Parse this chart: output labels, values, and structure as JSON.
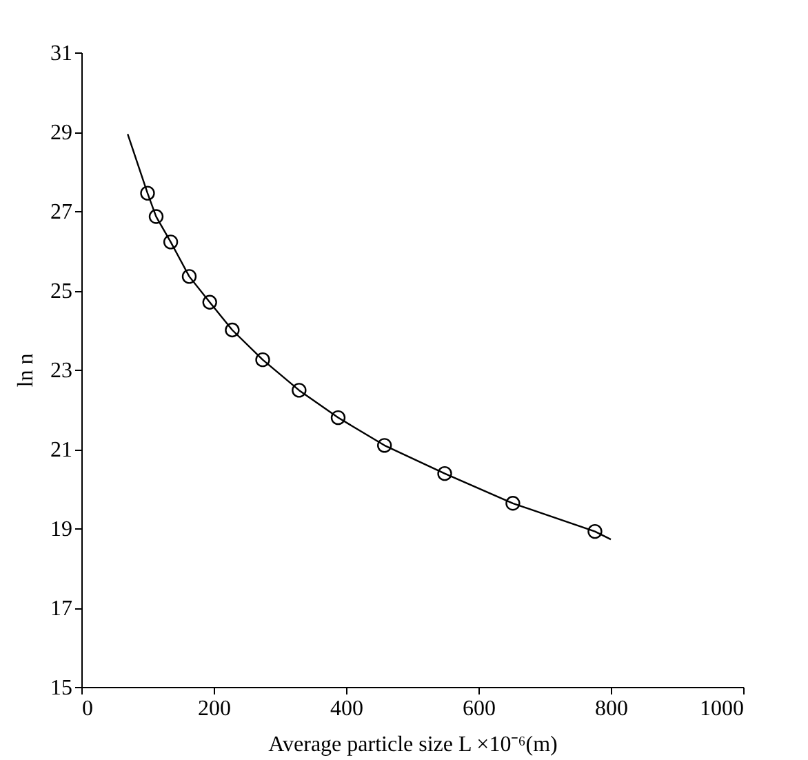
{
  "chart_data": {
    "type": "line",
    "xlabel": "Average particle size L ×10⁻⁶(m)",
    "ylabel": "ln n",
    "series": [
      {
        "color": "#000000",
        "marker": "none",
        "x": [
          70,
          100,
          113,
          135,
          163,
          194,
          228,
          274,
          329,
          388,
          458,
          549,
          652,
          776,
          800
        ],
        "values": [
          28.94,
          27.45,
          26.86,
          26.22,
          25.35,
          24.7,
          24.0,
          23.25,
          22.48,
          21.79,
          21.09,
          20.38,
          19.63,
          18.92,
          18.72
        ]
      },
      {
        "type": "scatter",
        "color": "#000000",
        "marker": "circle",
        "x": [
          100,
          113,
          135,
          163,
          194,
          228,
          274,
          329,
          388,
          458,
          549,
          652,
          776
        ],
        "values": [
          27.45,
          26.86,
          26.22,
          25.35,
          24.7,
          24.0,
          23.25,
          22.48,
          21.79,
          21.09,
          20.38,
          19.63,
          18.92
        ]
      }
    ],
    "xlim": [
      0,
      1000
    ],
    "xticks": [
      0,
      200,
      400,
      600,
      800,
      1000
    ],
    "ylim": [
      15,
      31
    ],
    "yticks": [
      15,
      17,
      19,
      21,
      23,
      25,
      27,
      29,
      31
    ]
  }
}
